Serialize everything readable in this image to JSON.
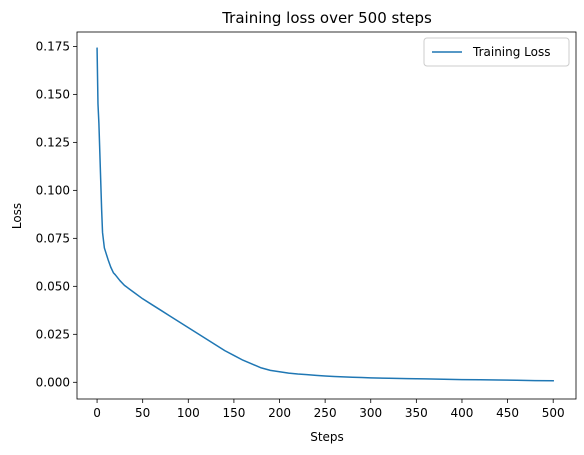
{
  "chart_data": {
    "type": "line",
    "title": "Training loss over 500 steps",
    "xlabel": "Steps",
    "ylabel": "Loss",
    "xlim": [
      -22,
      525
    ],
    "ylim": [
      -0.0087,
      0.1825
    ],
    "xticks": [
      0,
      50,
      100,
      150,
      200,
      250,
      300,
      350,
      400,
      450,
      500
    ],
    "yticks": [
      0.0,
      0.025,
      0.05,
      0.075,
      0.1,
      0.125,
      0.15,
      0.175
    ],
    "ytick_labels": [
      "0.000",
      "0.025",
      "0.050",
      "0.075",
      "0.100",
      "0.125",
      "0.150",
      "0.175"
    ],
    "grid": false,
    "legend_position": "top-right",
    "line_color": "#1f77b4",
    "series": [
      {
        "name": "Training Loss",
        "x": [
          0,
          1,
          2,
          3,
          4,
          5,
          6,
          8,
          10,
          12,
          15,
          18,
          20,
          25,
          30,
          40,
          50,
          60,
          70,
          80,
          90,
          100,
          110,
          120,
          130,
          140,
          150,
          160,
          170,
          180,
          190,
          200,
          210,
          220,
          230,
          240,
          250,
          260,
          270,
          280,
          290,
          300,
          320,
          340,
          360,
          380,
          400,
          420,
          440,
          460,
          480,
          500
        ],
        "values": [
          0.174,
          0.145,
          0.135,
          0.12,
          0.105,
          0.09,
          0.078,
          0.07,
          0.067,
          0.064,
          0.06,
          0.057,
          0.056,
          0.053,
          0.0505,
          0.047,
          0.0435,
          0.0405,
          0.0375,
          0.0345,
          0.0315,
          0.0285,
          0.0255,
          0.0225,
          0.0195,
          0.0165,
          0.014,
          0.0115,
          0.0095,
          0.0075,
          0.0062,
          0.0055,
          0.0048,
          0.0043,
          0.004,
          0.0036,
          0.0033,
          0.003,
          0.0028,
          0.0026,
          0.0025,
          0.0023,
          0.0021,
          0.0019,
          0.0018,
          0.0016,
          0.0014,
          0.0013,
          0.0012,
          0.0011,
          0.0009,
          0.0008
        ]
      }
    ]
  }
}
